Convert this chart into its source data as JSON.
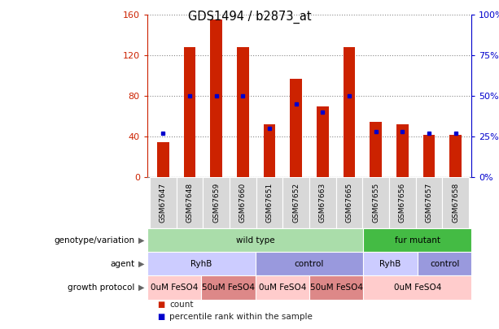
{
  "title": "GDS1494 / b2873_at",
  "samples": [
    "GSM67647",
    "GSM67648",
    "GSM67659",
    "GSM67660",
    "GSM67651",
    "GSM67652",
    "GSM67663",
    "GSM67665",
    "GSM67655",
    "GSM67656",
    "GSM67657",
    "GSM67658"
  ],
  "counts": [
    35,
    128,
    155,
    128,
    52,
    97,
    70,
    128,
    55,
    52,
    42,
    42
  ],
  "percentiles": [
    27,
    50,
    50,
    50,
    30,
    45,
    40,
    50,
    28,
    28,
    27,
    27
  ],
  "left_ylim": [
    0,
    160
  ],
  "left_yticks": [
    0,
    40,
    80,
    120,
    160
  ],
  "right_ylim": [
    0,
    100
  ],
  "right_yticks": [
    0,
    25,
    50,
    75,
    100
  ],
  "bar_color": "#cc2200",
  "dot_color": "#0000cc",
  "genotype_row": {
    "label": "genotype/variation",
    "groups": [
      {
        "name": "wild type",
        "start": 0,
        "end": 8,
        "color": "#aaddaa"
      },
      {
        "name": "fur mutant",
        "start": 8,
        "end": 12,
        "color": "#44bb44"
      }
    ]
  },
  "agent_row": {
    "label": "agent",
    "groups": [
      {
        "name": "RyhB",
        "start": 0,
        "end": 4,
        "color": "#ccccff"
      },
      {
        "name": "control",
        "start": 4,
        "end": 8,
        "color": "#9999dd"
      },
      {
        "name": "RyhB",
        "start": 8,
        "end": 10,
        "color": "#ccccff"
      },
      {
        "name": "control",
        "start": 10,
        "end": 12,
        "color": "#9999dd"
      }
    ]
  },
  "growth_row": {
    "label": "growth protocol",
    "groups": [
      {
        "name": "0uM FeSO4",
        "start": 0,
        "end": 2,
        "color": "#ffcccc"
      },
      {
        "name": "50uM FeSO4",
        "start": 2,
        "end": 4,
        "color": "#dd8888"
      },
      {
        "name": "0uM FeSO4",
        "start": 4,
        "end": 6,
        "color": "#ffcccc"
      },
      {
        "name": "50uM FeSO4",
        "start": 6,
        "end": 8,
        "color": "#dd8888"
      },
      {
        "name": "0uM FeSO4",
        "start": 8,
        "end": 12,
        "color": "#ffcccc"
      }
    ]
  },
  "legend_items": [
    {
      "label": "count",
      "color": "#cc2200"
    },
    {
      "label": "percentile rank within the sample",
      "color": "#0000cc"
    }
  ]
}
